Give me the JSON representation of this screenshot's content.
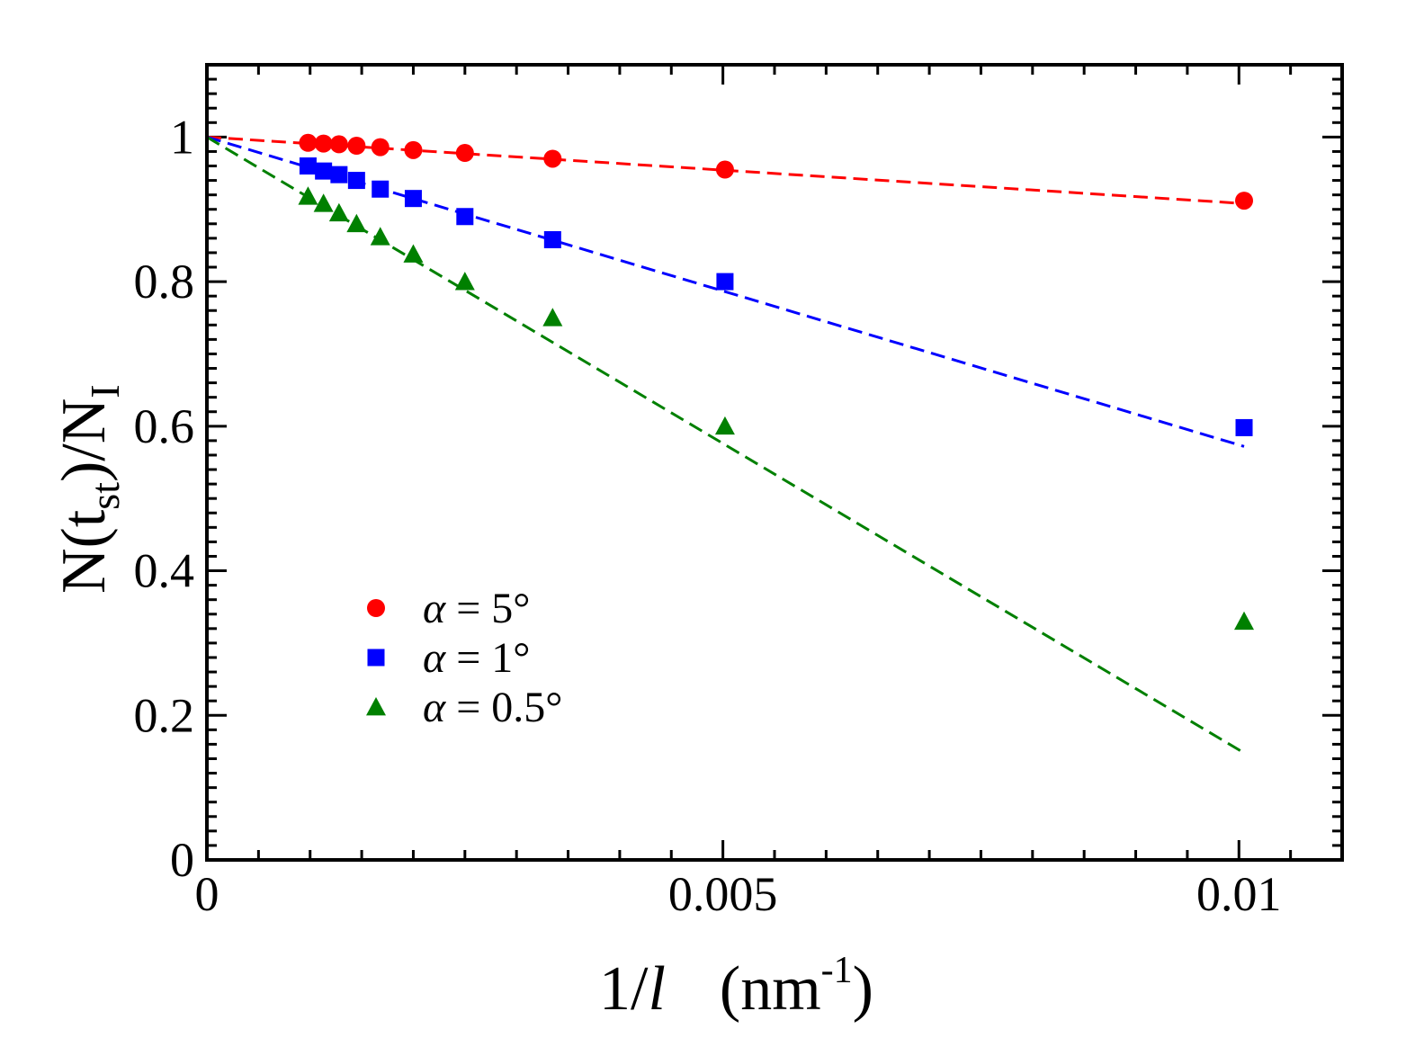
{
  "chart_data": {
    "type": "scatter",
    "title": "",
    "xlabel": "1/l (nm^-1)",
    "ylabel": "N(t_st)/N_I",
    "xlim": [
      0,
      0.011
    ],
    "ylim": [
      0,
      1.1
    ],
    "grid": false,
    "legend_position": "lower-left",
    "x_ticks": [
      {
        "value": 0,
        "label": "0"
      },
      {
        "value": 0.005,
        "label": "0.005"
      },
      {
        "value": 0.01,
        "label": "0.01"
      }
    ],
    "y_ticks": [
      {
        "value": 0,
        "label": "0"
      },
      {
        "value": 0.2,
        "label": "0.2"
      },
      {
        "value": 0.4,
        "label": "0.4"
      },
      {
        "value": 0.6,
        "label": "0.6"
      },
      {
        "value": 0.8,
        "label": "0.8"
      },
      {
        "value": 1,
        "label": "1"
      }
    ],
    "x_axis_title": {
      "main": "1/",
      "italic": "l",
      "unit": "(nm",
      "sup": "-1",
      "close": ")"
    },
    "y_axis_title": {
      "p1": "N(t",
      "sub1": "st",
      "p2": ")/N",
      "sub2": "I"
    },
    "series": [
      {
        "name": "α = 5°",
        "label_alpha": "α",
        "label_rest": " = 5°",
        "color": "#ff0000",
        "marker": "circle",
        "x": [
          0.00098,
          0.00113,
          0.00128,
          0.00145,
          0.00168,
          0.002,
          0.0025,
          0.00335,
          0.00502,
          0.01005
        ],
        "y": [
          0.992,
          0.991,
          0.99,
          0.988,
          0.986,
          0.982,
          0.978,
          0.97,
          0.955,
          0.912
        ],
        "fit": {
          "x": [
            0,
            0.01005
          ],
          "y": [
            1.0,
            0.908
          ]
        }
      },
      {
        "name": "α = 1°",
        "label_alpha": "α",
        "label_rest": " = 1°",
        "color": "#0000ff",
        "marker": "square",
        "x": [
          0.00098,
          0.00113,
          0.00128,
          0.00145,
          0.00168,
          0.002,
          0.0025,
          0.00335,
          0.00502,
          0.01005
        ],
        "y": [
          0.96,
          0.953,
          0.948,
          0.94,
          0.928,
          0.915,
          0.89,
          0.858,
          0.8,
          0.598
        ],
        "fit": {
          "x": [
            0,
            0.01005
          ],
          "y": [
            1.0,
            0.572
          ]
        }
      },
      {
        "name": "α = 0.5°",
        "label_alpha": "α",
        "label_rest": " = 0.5°",
        "color": "#008000",
        "marker": "triangle",
        "x": [
          0.00098,
          0.00113,
          0.00128,
          0.00145,
          0.00168,
          0.002,
          0.0025,
          0.00335,
          0.00502,
          0.01005
        ],
        "y": [
          0.918,
          0.908,
          0.895,
          0.88,
          0.862,
          0.838,
          0.8,
          0.75,
          0.6,
          0.33
        ],
        "fit": {
          "x": [
            0,
            0.01005
          ],
          "y": [
            1.0,
            0.148
          ]
        }
      }
    ]
  }
}
